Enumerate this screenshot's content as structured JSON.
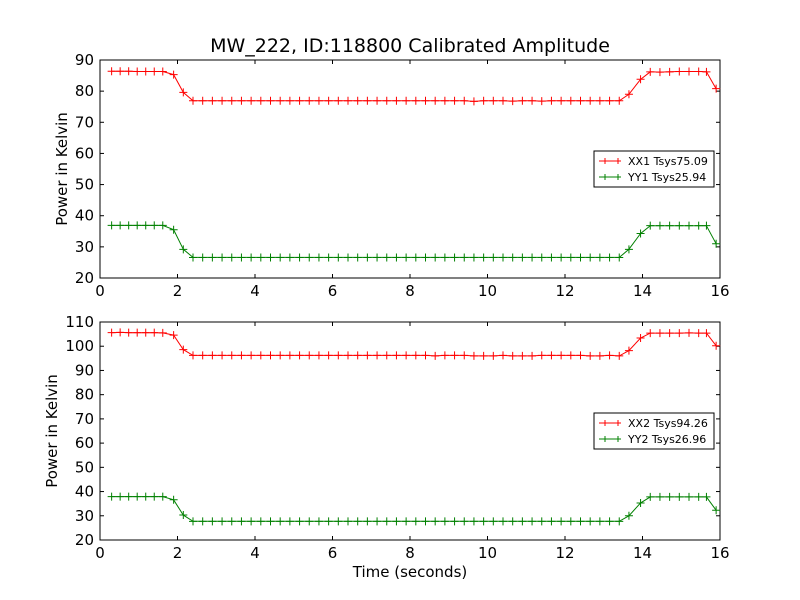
{
  "figure": {
    "title": "MW_222, ID:118800 Calibrated Amplitude"
  },
  "chart_data": [
    {
      "type": "line",
      "xlabel": "",
      "ylabel": "Power in Kelvin",
      "xlim": [
        0,
        16
      ],
      "ylim": [
        20,
        90
      ],
      "xticks": [
        "0",
        "2",
        "4",
        "6",
        "8",
        "10",
        "12",
        "14",
        "16"
      ],
      "yticks": [
        "20",
        "30",
        "40",
        "50",
        "60",
        "70",
        "80",
        "90"
      ],
      "grid": false,
      "legend": "center-right",
      "marker": "+",
      "x": [
        0.3,
        0.52,
        0.74,
        0.96,
        1.18,
        1.4,
        1.62,
        1.9,
        2.15,
        2.4,
        2.65,
        2.9,
        3.15,
        3.4,
        3.65,
        3.9,
        4.15,
        4.4,
        4.65,
        4.9,
        5.15,
        5.4,
        5.65,
        5.9,
        6.15,
        6.4,
        6.65,
        6.9,
        7.15,
        7.4,
        7.65,
        7.9,
        8.15,
        8.4,
        8.65,
        8.9,
        9.15,
        9.4,
        9.65,
        9.9,
        10.15,
        10.4,
        10.65,
        10.9,
        11.15,
        11.4,
        11.65,
        11.9,
        12.15,
        12.4,
        12.65,
        12.9,
        13.15,
        13.4,
        13.65,
        13.95,
        14.2,
        14.45,
        14.7,
        14.95,
        15.2,
        15.45,
        15.65,
        15.9
      ],
      "series": [
        {
          "name": "XX1 Tsys75.09",
          "color": "#ff0000",
          "values": [
            86.4,
            86.4,
            86.4,
            86.3,
            86.3,
            86.3,
            86.3,
            85.3,
            79.6,
            76.9,
            76.9,
            76.9,
            76.9,
            76.9,
            76.9,
            76.9,
            76.9,
            76.9,
            76.9,
            76.9,
            76.9,
            76.9,
            76.9,
            76.9,
            76.9,
            76.9,
            76.9,
            76.9,
            76.9,
            76.9,
            76.9,
            76.9,
            76.9,
            76.9,
            76.9,
            76.9,
            76.9,
            76.9,
            76.7,
            76.9,
            76.9,
            76.9,
            76.8,
            76.9,
            76.9,
            76.8,
            76.9,
            76.9,
            76.9,
            76.9,
            76.9,
            76.9,
            76.9,
            76.9,
            79.0,
            83.8,
            86.2,
            86.1,
            86.2,
            86.3,
            86.3,
            86.3,
            86.2,
            80.8
          ]
        },
        {
          "name": "YY1 Tsys25.94",
          "color": "#008000",
          "values": [
            36.9,
            36.9,
            36.9,
            36.9,
            36.9,
            36.9,
            36.9,
            35.5,
            29.2,
            26.6,
            26.6,
            26.6,
            26.6,
            26.6,
            26.6,
            26.6,
            26.6,
            26.6,
            26.6,
            26.6,
            26.6,
            26.6,
            26.6,
            26.6,
            26.6,
            26.6,
            26.6,
            26.6,
            26.6,
            26.6,
            26.6,
            26.6,
            26.6,
            26.6,
            26.6,
            26.6,
            26.6,
            26.6,
            26.6,
            26.6,
            26.6,
            26.6,
            26.6,
            26.6,
            26.6,
            26.6,
            26.6,
            26.6,
            26.6,
            26.6,
            26.6,
            26.6,
            26.6,
            26.6,
            29.2,
            34.3,
            36.8,
            36.8,
            36.8,
            36.8,
            36.8,
            36.8,
            36.8,
            31.0
          ]
        }
      ]
    },
    {
      "type": "line",
      "xlabel": "Time (seconds)",
      "ylabel": "Power in Kelvin",
      "xlim": [
        0,
        16
      ],
      "ylim": [
        20,
        110
      ],
      "xticks": [
        "0",
        "2",
        "4",
        "6",
        "8",
        "10",
        "12",
        "14",
        "16"
      ],
      "yticks": [
        "20",
        "30",
        "40",
        "50",
        "60",
        "70",
        "80",
        "90",
        "100",
        "110"
      ],
      "grid": false,
      "legend": "center-right",
      "marker": "+",
      "x": [
        0.3,
        0.52,
        0.74,
        0.96,
        1.18,
        1.4,
        1.62,
        1.9,
        2.15,
        2.4,
        2.65,
        2.9,
        3.15,
        3.4,
        3.65,
        3.9,
        4.15,
        4.4,
        4.65,
        4.9,
        5.15,
        5.4,
        5.65,
        5.9,
        6.15,
        6.4,
        6.65,
        6.9,
        7.15,
        7.4,
        7.65,
        7.9,
        8.15,
        8.4,
        8.65,
        8.9,
        9.15,
        9.4,
        9.65,
        9.9,
        10.15,
        10.4,
        10.65,
        10.9,
        11.15,
        11.4,
        11.65,
        11.9,
        12.15,
        12.4,
        12.65,
        12.9,
        13.15,
        13.4,
        13.65,
        13.95,
        14.2,
        14.45,
        14.7,
        14.95,
        15.2,
        15.45,
        15.65,
        15.9
      ],
      "series": [
        {
          "name": "XX2 Tsys94.26",
          "color": "#ff0000",
          "values": [
            105.6,
            105.7,
            105.6,
            105.6,
            105.6,
            105.6,
            105.5,
            104.6,
            98.6,
            96.2,
            96.2,
            96.2,
            96.2,
            96.2,
            96.2,
            96.2,
            96.2,
            96.2,
            96.2,
            96.2,
            96.2,
            96.2,
            96.2,
            96.2,
            96.2,
            96.2,
            96.2,
            96.2,
            96.2,
            96.2,
            96.2,
            96.2,
            96.2,
            96.2,
            96.0,
            96.2,
            96.2,
            96.2,
            96.0,
            96.0,
            96.0,
            96.2,
            96.0,
            96.0,
            96.0,
            96.2,
            96.2,
            96.2,
            96.2,
            96.2,
            96.0,
            96.0,
            96.2,
            96.0,
            98.2,
            103.4,
            105.4,
            105.4,
            105.4,
            105.4,
            105.5,
            105.4,
            105.4,
            100.2
          ]
        },
        {
          "name": "YY2 Tsys26.96",
          "color": "#008000",
          "values": [
            37.9,
            37.9,
            37.9,
            37.9,
            37.9,
            37.9,
            37.9,
            36.6,
            30.3,
            27.7,
            27.7,
            27.7,
            27.7,
            27.7,
            27.7,
            27.7,
            27.7,
            27.7,
            27.7,
            27.7,
            27.7,
            27.7,
            27.7,
            27.7,
            27.7,
            27.7,
            27.7,
            27.7,
            27.7,
            27.7,
            27.7,
            27.7,
            27.7,
            27.7,
            27.7,
            27.7,
            27.7,
            27.7,
            27.7,
            27.7,
            27.7,
            27.7,
            27.7,
            27.7,
            27.7,
            27.7,
            27.7,
            27.7,
            27.7,
            27.7,
            27.7,
            27.7,
            27.7,
            27.7,
            30.0,
            35.3,
            37.8,
            37.8,
            37.8,
            37.8,
            37.8,
            37.8,
            37.8,
            32.3
          ]
        }
      ]
    }
  ]
}
